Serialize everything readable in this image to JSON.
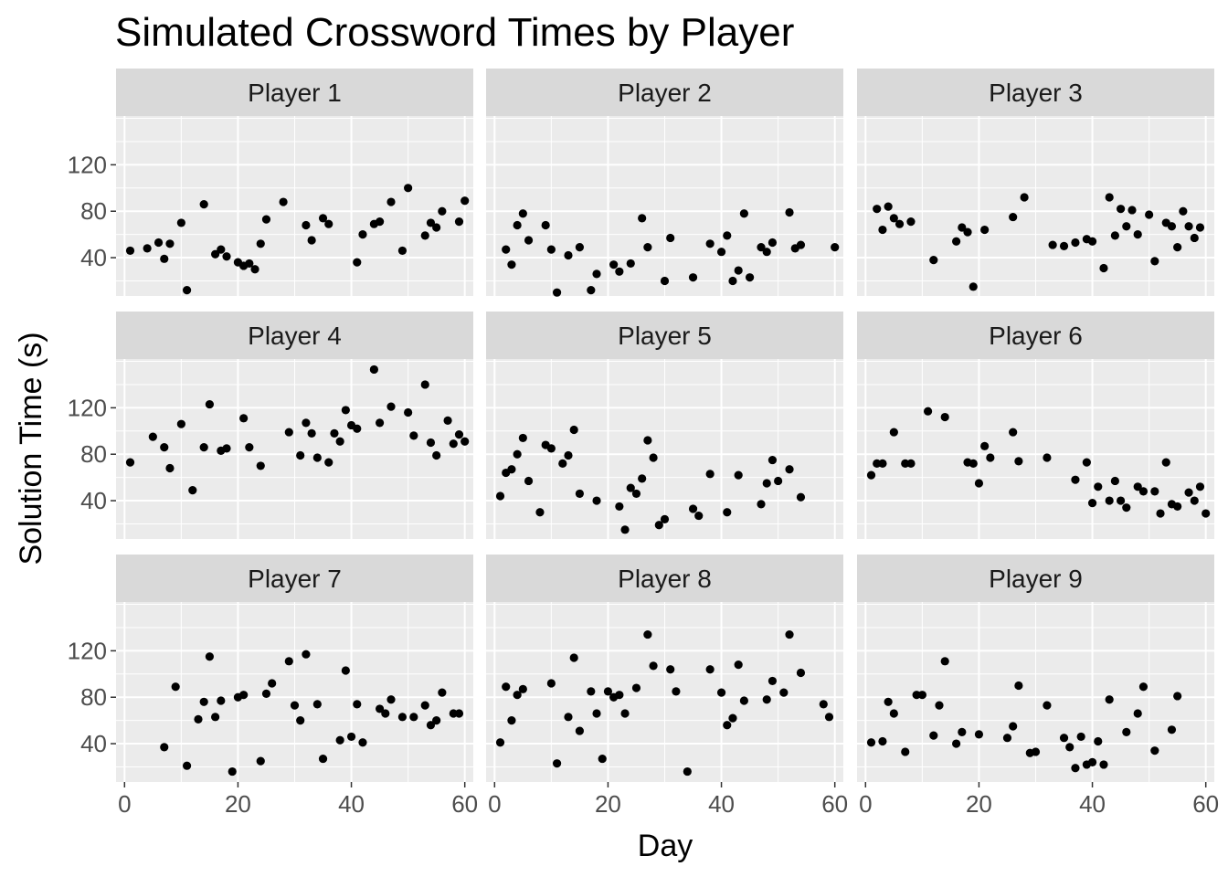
{
  "chart_data": {
    "type": "scatter",
    "title": "Simulated Crossword Times by Player",
    "xlabel": "Day",
    "ylabel": "Solution Time (s)",
    "xlim": [
      -1.5,
      61.5
    ],
    "ylim": [
      7,
      162
    ],
    "x_ticks": [
      0,
      20,
      40,
      60
    ],
    "y_ticks": [
      40,
      80,
      120
    ],
    "grid": true,
    "facets": [
      {
        "name": "Player 1",
        "points": [
          [
            1,
            46
          ],
          [
            4,
            48
          ],
          [
            6,
            53
          ],
          [
            7,
            39
          ],
          [
            8,
            52
          ],
          [
            10,
            70
          ],
          [
            11,
            12
          ],
          [
            14,
            86
          ],
          [
            16,
            43
          ],
          [
            17,
            47
          ],
          [
            18,
            41
          ],
          [
            20,
            36
          ],
          [
            21,
            33
          ],
          [
            22,
            35
          ],
          [
            23,
            30
          ],
          [
            24,
            52
          ],
          [
            25,
            73
          ],
          [
            28,
            88
          ],
          [
            32,
            68
          ],
          [
            33,
            55
          ],
          [
            35,
            74
          ],
          [
            36,
            69
          ],
          [
            41,
            36
          ],
          [
            42,
            60
          ],
          [
            44,
            69
          ],
          [
            45,
            71
          ],
          [
            47,
            88
          ],
          [
            49,
            46
          ],
          [
            50,
            100
          ],
          [
            53,
            59
          ],
          [
            54,
            70
          ],
          [
            55,
            66
          ],
          [
            56,
            80
          ],
          [
            59,
            71
          ],
          [
            60,
            89
          ]
        ]
      },
      {
        "name": "Player 2",
        "points": [
          [
            2,
            47
          ],
          [
            3,
            34
          ],
          [
            4,
            68
          ],
          [
            5,
            78
          ],
          [
            6,
            55
          ],
          [
            9,
            68
          ],
          [
            10,
            47
          ],
          [
            11,
            10
          ],
          [
            13,
            42
          ],
          [
            15,
            49
          ],
          [
            17,
            12
          ],
          [
            18,
            26
          ],
          [
            21,
            34
          ],
          [
            22,
            28
          ],
          [
            24,
            35
          ],
          [
            26,
            74
          ],
          [
            27,
            49
          ],
          [
            30,
            20
          ],
          [
            31,
            57
          ],
          [
            35,
            23
          ],
          [
            38,
            52
          ],
          [
            40,
            45
          ],
          [
            41,
            59
          ],
          [
            42,
            20
          ],
          [
            43,
            29
          ],
          [
            44,
            78
          ],
          [
            45,
            23
          ],
          [
            47,
            49
          ],
          [
            48,
            45
          ],
          [
            49,
            53
          ],
          [
            52,
            79
          ],
          [
            53,
            48
          ],
          [
            54,
            51
          ],
          [
            60,
            49
          ]
        ]
      },
      {
        "name": "Player 3",
        "points": [
          [
            2,
            82
          ],
          [
            3,
            64
          ],
          [
            4,
            84
          ],
          [
            5,
            74
          ],
          [
            6,
            69
          ],
          [
            8,
            71
          ],
          [
            12,
            38
          ],
          [
            16,
            54
          ],
          [
            17,
            66
          ],
          [
            18,
            62
          ],
          [
            19,
            15
          ],
          [
            21,
            64
          ],
          [
            26,
            75
          ],
          [
            28,
            92
          ],
          [
            33,
            51
          ],
          [
            35,
            50
          ],
          [
            37,
            53
          ],
          [
            39,
            56
          ],
          [
            40,
            54
          ],
          [
            42,
            31
          ],
          [
            43,
            92
          ],
          [
            44,
            59
          ],
          [
            45,
            82
          ],
          [
            46,
            67
          ],
          [
            47,
            81
          ],
          [
            48,
            60
          ],
          [
            50,
            77
          ],
          [
            51,
            37
          ],
          [
            53,
            70
          ],
          [
            54,
            67
          ],
          [
            55,
            49
          ],
          [
            56,
            80
          ],
          [
            57,
            67
          ],
          [
            58,
            57
          ],
          [
            59,
            66
          ]
        ]
      },
      {
        "name": "Player 4",
        "points": [
          [
            1,
            73
          ],
          [
            5,
            95
          ],
          [
            7,
            86
          ],
          [
            8,
            68
          ],
          [
            10,
            106
          ],
          [
            12,
            49
          ],
          [
            14,
            86
          ],
          [
            15,
            123
          ],
          [
            17,
            83
          ],
          [
            18,
            85
          ],
          [
            21,
            111
          ],
          [
            22,
            86
          ],
          [
            24,
            70
          ],
          [
            29,
            99
          ],
          [
            31,
            79
          ],
          [
            32,
            107
          ],
          [
            33,
            98
          ],
          [
            34,
            77
          ],
          [
            36,
            73
          ],
          [
            37,
            98
          ],
          [
            38,
            91
          ],
          [
            39,
            118
          ],
          [
            40,
            105
          ],
          [
            41,
            102
          ],
          [
            44,
            153
          ],
          [
            45,
            107
          ],
          [
            47,
            121
          ],
          [
            50,
            116
          ],
          [
            51,
            96
          ],
          [
            53,
            140
          ],
          [
            54,
            90
          ],
          [
            55,
            79
          ],
          [
            57,
            109
          ],
          [
            58,
            89
          ],
          [
            59,
            97
          ],
          [
            60,
            91
          ]
        ]
      },
      {
        "name": "Player 5",
        "points": [
          [
            1,
            44
          ],
          [
            2,
            64
          ],
          [
            3,
            67
          ],
          [
            4,
            80
          ],
          [
            5,
            94
          ],
          [
            6,
            57
          ],
          [
            8,
            30
          ],
          [
            9,
            88
          ],
          [
            10,
            85
          ],
          [
            12,
            72
          ],
          [
            13,
            79
          ],
          [
            14,
            101
          ],
          [
            15,
            46
          ],
          [
            18,
            40
          ],
          [
            22,
            35
          ],
          [
            23,
            15
          ],
          [
            24,
            51
          ],
          [
            25,
            46
          ],
          [
            26,
            59
          ],
          [
            27,
            92
          ],
          [
            28,
            77
          ],
          [
            29,
            19
          ],
          [
            30,
            24
          ],
          [
            35,
            33
          ],
          [
            36,
            27
          ],
          [
            38,
            63
          ],
          [
            41,
            30
          ],
          [
            43,
            62
          ],
          [
            47,
            37
          ],
          [
            48,
            55
          ],
          [
            49,
            75
          ],
          [
            50,
            57
          ],
          [
            52,
            67
          ],
          [
            54,
            43
          ]
        ]
      },
      {
        "name": "Player 6",
        "points": [
          [
            1,
            62
          ],
          [
            2,
            72
          ],
          [
            3,
            72
          ],
          [
            5,
            99
          ],
          [
            7,
            72
          ],
          [
            8,
            72
          ],
          [
            11,
            117
          ],
          [
            14,
            112
          ],
          [
            18,
            73
          ],
          [
            19,
            72
          ],
          [
            20,
            55
          ],
          [
            21,
            87
          ],
          [
            22,
            77
          ],
          [
            26,
            99
          ],
          [
            27,
            74
          ],
          [
            32,
            77
          ],
          [
            37,
            58
          ],
          [
            39,
            73
          ],
          [
            40,
            38
          ],
          [
            41,
            52
          ],
          [
            43,
            40
          ],
          [
            44,
            57
          ],
          [
            45,
            40
          ],
          [
            46,
            34
          ],
          [
            48,
            52
          ],
          [
            49,
            48
          ],
          [
            51,
            48
          ],
          [
            52,
            29
          ],
          [
            53,
            73
          ],
          [
            54,
            37
          ],
          [
            55,
            35
          ],
          [
            57,
            47
          ],
          [
            58,
            40
          ],
          [
            59,
            52
          ],
          [
            60,
            29
          ]
        ]
      },
      {
        "name": "Player 7",
        "points": [
          [
            7,
            37
          ],
          [
            9,
            89
          ],
          [
            11,
            21
          ],
          [
            13,
            61
          ],
          [
            14,
            76
          ],
          [
            15,
            115
          ],
          [
            16,
            63
          ],
          [
            17,
            77
          ],
          [
            19,
            16
          ],
          [
            20,
            80
          ],
          [
            21,
            82
          ],
          [
            24,
            25
          ],
          [
            25,
            83
          ],
          [
            26,
            92
          ],
          [
            29,
            111
          ],
          [
            30,
            73
          ],
          [
            31,
            60
          ],
          [
            32,
            117
          ],
          [
            34,
            74
          ],
          [
            35,
            27
          ],
          [
            38,
            43
          ],
          [
            39,
            103
          ],
          [
            40,
            46
          ],
          [
            41,
            74
          ],
          [
            42,
            41
          ],
          [
            45,
            70
          ],
          [
            46,
            66
          ],
          [
            47,
            78
          ],
          [
            49,
            63
          ],
          [
            51,
            63
          ],
          [
            53,
            73
          ],
          [
            54,
            56
          ],
          [
            55,
            60
          ],
          [
            56,
            84
          ],
          [
            58,
            66
          ],
          [
            59,
            66
          ]
        ]
      },
      {
        "name": "Player 8",
        "points": [
          [
            1,
            41
          ],
          [
            2,
            89
          ],
          [
            3,
            60
          ],
          [
            4,
            82
          ],
          [
            5,
            87
          ],
          [
            10,
            92
          ],
          [
            11,
            23
          ],
          [
            13,
            63
          ],
          [
            14,
            114
          ],
          [
            15,
            51
          ],
          [
            17,
            85
          ],
          [
            18,
            66
          ],
          [
            19,
            27
          ],
          [
            20,
            85
          ],
          [
            21,
            80
          ],
          [
            22,
            82
          ],
          [
            23,
            66
          ],
          [
            25,
            88
          ],
          [
            27,
            134
          ],
          [
            28,
            107
          ],
          [
            31,
            104
          ],
          [
            32,
            85
          ],
          [
            34,
            16
          ],
          [
            38,
            104
          ],
          [
            40,
            84
          ],
          [
            41,
            56
          ],
          [
            42,
            62
          ],
          [
            43,
            108
          ],
          [
            44,
            77
          ],
          [
            48,
            78
          ],
          [
            49,
            94
          ],
          [
            51,
            84
          ],
          [
            52,
            134
          ],
          [
            54,
            101
          ],
          [
            58,
            74
          ],
          [
            59,
            63
          ]
        ]
      },
      {
        "name": "Player 9",
        "points": [
          [
            1,
            41
          ],
          [
            3,
            42
          ],
          [
            4,
            76
          ],
          [
            5,
            66
          ],
          [
            7,
            33
          ],
          [
            9,
            82
          ],
          [
            10,
            82
          ],
          [
            12,
            47
          ],
          [
            13,
            73
          ],
          [
            14,
            111
          ],
          [
            16,
            40
          ],
          [
            17,
            50
          ],
          [
            20,
            48
          ],
          [
            25,
            45
          ],
          [
            26,
            55
          ],
          [
            27,
            90
          ],
          [
            29,
            32
          ],
          [
            30,
            33
          ],
          [
            32,
            73
          ],
          [
            35,
            45
          ],
          [
            36,
            37
          ],
          [
            37,
            19
          ],
          [
            38,
            46
          ],
          [
            39,
            22
          ],
          [
            40,
            24
          ],
          [
            41,
            42
          ],
          [
            42,
            22
          ],
          [
            43,
            78
          ],
          [
            46,
            50
          ],
          [
            48,
            66
          ],
          [
            49,
            89
          ],
          [
            51,
            34
          ],
          [
            54,
            52
          ],
          [
            55,
            81
          ]
        ]
      }
    ]
  }
}
